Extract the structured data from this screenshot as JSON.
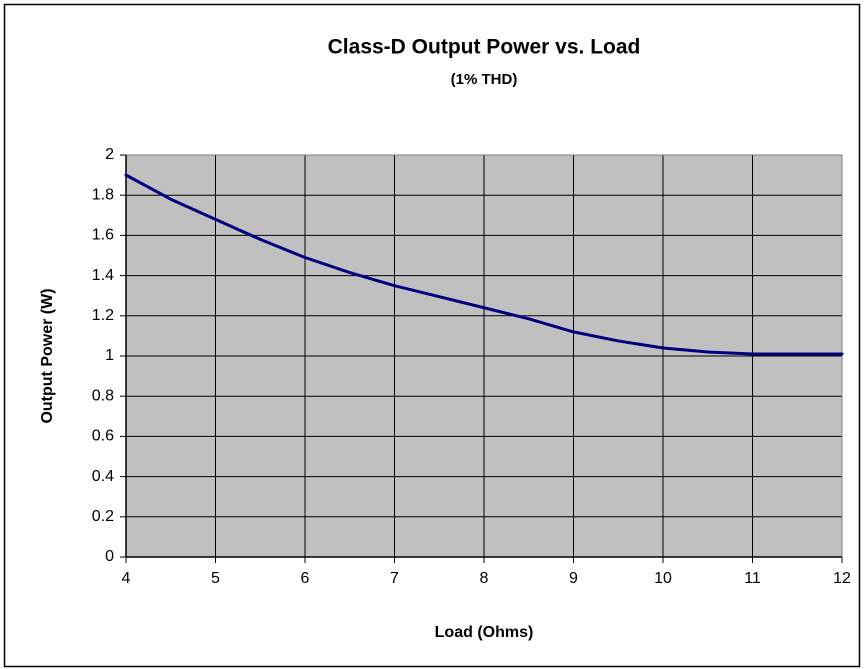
{
  "chart_data": {
    "type": "line",
    "title": "Class-D Output Power vs. Load",
    "subtitle": "(1% THD)",
    "x_label": "Load (Ohms)",
    "y_label": "Output Power (W)",
    "x": [
      4,
      4.5,
      5,
      5.5,
      6,
      6.5,
      7,
      7.5,
      8,
      8.5,
      9,
      9.5,
      10,
      10.5,
      11,
      11.5,
      12
    ],
    "series": [
      {
        "name": "Output Power",
        "color": "#000080",
        "values": [
          1.9,
          1.78,
          1.68,
          1.58,
          1.49,
          1.415,
          1.35,
          1.295,
          1.24,
          1.185,
          1.12,
          1.075,
          1.04,
          1.02,
          1.01,
          1.01,
          1.01
        ]
      }
    ],
    "xlim": [
      4,
      12
    ],
    "xticks": [
      4,
      5,
      6,
      7,
      8,
      9,
      10,
      11,
      12
    ],
    "ylim": [
      0,
      2
    ],
    "yticks": [
      0,
      0.2,
      0.4,
      0.6,
      0.8,
      1,
      1.2,
      1.4,
      1.6,
      1.8,
      2
    ],
    "grid": true,
    "plot_background": "#c0c0c0"
  }
}
